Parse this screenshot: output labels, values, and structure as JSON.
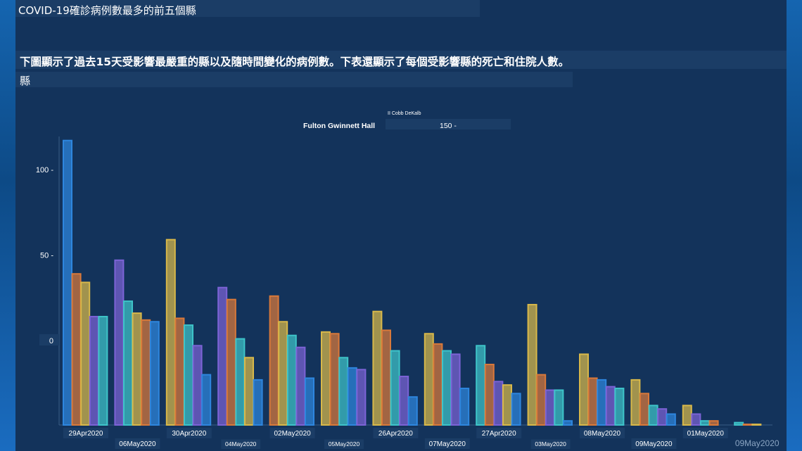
{
  "header": {
    "title": "COVID-19確診病例數最多的前五個縣",
    "description": "下圖顯示了過去15天受影響最嚴重的縣以及隨時間變化的病例數。下表還顯示了每個受影響縣的死亡和住院人數。",
    "county_label": "縣"
  },
  "legend": {
    "row1": "II Cobb DeKalb",
    "row2": "Fulton Gwinnett Hall",
    "row2_tick": "150 -"
  },
  "colors": {
    "page_bg": "#13335b",
    "fulton": "#2e86de",
    "gwinnett": "#d9793a",
    "hall": "#d8b84a",
    "cobb": "#7c63d6",
    "dekalb": "#3ec4c9"
  },
  "chart_data": {
    "type": "bar",
    "title": "",
    "xlabel": "",
    "ylabel": "",
    "y_tick_labels": [
      "100 -",
      "50 -",
      "0"
    ],
    "x_tick_labels": [
      "29Apr2020",
      "06May2020",
      "30Apr2020",
      "04May2020",
      "02May2020",
      "05May2020",
      "26Apr2020",
      "07May2020",
      "27Apr2020",
      "03May2020",
      "08May2020",
      "09May2020",
      "01May2020",
      "09May2020"
    ],
    "groups": [
      {
        "bars": [
          {
            "series": "fulton",
            "value": 117
          },
          {
            "series": "gwinnett",
            "value": 39
          },
          {
            "series": "hall",
            "value": 34
          },
          {
            "series": "cobb",
            "value": 14
          },
          {
            "series": "dekalb",
            "value": 14
          }
        ]
      },
      {
        "bars": [
          {
            "series": "cobb",
            "value": 47
          },
          {
            "series": "dekalb",
            "value": 23
          },
          {
            "series": "hall",
            "value": 16
          },
          {
            "series": "gwinnett",
            "value": 12
          },
          {
            "series": "fulton",
            "value": 11
          }
        ]
      },
      {
        "bars": [
          {
            "series": "hall",
            "value": 59
          },
          {
            "series": "gwinnett",
            "value": 13
          },
          {
            "series": "dekalb",
            "value": 9
          },
          {
            "series": "cobb",
            "value": -3
          },
          {
            "series": "fulton",
            "value": -20
          }
        ]
      },
      {
        "bars": [
          {
            "series": "cobb",
            "value": 31
          },
          {
            "series": "gwinnett",
            "value": 24
          },
          {
            "series": "dekalb",
            "value": 1
          },
          {
            "series": "hall",
            "value": -10
          },
          {
            "series": "fulton",
            "value": -23
          }
        ]
      },
      {
        "bars": [
          {
            "series": "gwinnett",
            "value": 26
          },
          {
            "series": "hall",
            "value": 11
          },
          {
            "series": "dekalb",
            "value": 3
          },
          {
            "series": "cobb",
            "value": -4
          },
          {
            "series": "fulton",
            "value": -22
          }
        ]
      },
      {
        "bars": [
          {
            "series": "hall",
            "value": 5
          },
          {
            "series": "gwinnett",
            "value": 4
          },
          {
            "series": "dekalb",
            "value": -10
          },
          {
            "series": "fulton",
            "value": -16
          },
          {
            "series": "cobb",
            "value": -17
          }
        ]
      },
      {
        "bars": [
          {
            "series": "hall",
            "value": 17
          },
          {
            "series": "gwinnett",
            "value": 6
          },
          {
            "series": "dekalb",
            "value": -6
          },
          {
            "series": "cobb",
            "value": -21
          },
          {
            "series": "fulton",
            "value": -33
          }
        ]
      },
      {
        "bars": [
          {
            "series": "hall",
            "value": 4
          },
          {
            "series": "gwinnett",
            "value": -2
          },
          {
            "series": "dekalb",
            "value": -6
          },
          {
            "series": "cobb",
            "value": -8
          },
          {
            "series": "fulton",
            "value": -28
          }
        ]
      },
      {
        "bars": [
          {
            "series": "dekalb",
            "value": -3
          },
          {
            "series": "gwinnett",
            "value": -14
          },
          {
            "series": "cobb",
            "value": -24
          },
          {
            "series": "hall",
            "value": -26
          },
          {
            "series": "fulton",
            "value": -31
          }
        ]
      },
      {
        "bars": [
          {
            "series": "hall",
            "value": 21
          },
          {
            "series": "gwinnett",
            "value": -20
          },
          {
            "series": "cobb",
            "value": -29
          },
          {
            "series": "dekalb",
            "value": -29
          },
          {
            "series": "fulton",
            "value": -47
          }
        ]
      },
      {
        "bars": [
          {
            "series": "hall",
            "value": -8
          },
          {
            "series": "gwinnett",
            "value": -22
          },
          {
            "series": "fulton",
            "value": -23
          },
          {
            "series": "cobb",
            "value": -27
          },
          {
            "series": "dekalb",
            "value": -28
          }
        ]
      },
      {
        "bars": [
          {
            "series": "hall",
            "value": -23
          },
          {
            "series": "gwinnett",
            "value": -31
          },
          {
            "series": "dekalb",
            "value": -38
          },
          {
            "series": "cobb",
            "value": -40
          },
          {
            "series": "fulton",
            "value": -43
          }
        ]
      },
      {
        "bars": [
          {
            "series": "hall",
            "value": -38
          },
          {
            "series": "cobb",
            "value": -43
          },
          {
            "series": "dekalb",
            "value": -47
          },
          {
            "series": "gwinnett",
            "value": -47
          }
        ]
      },
      {
        "bars": [
          {
            "series": "dekalb",
            "value": -48
          },
          {
            "series": "gwinnett",
            "value": -49
          },
          {
            "series": "hall",
            "value": -49
          }
        ]
      }
    ]
  }
}
